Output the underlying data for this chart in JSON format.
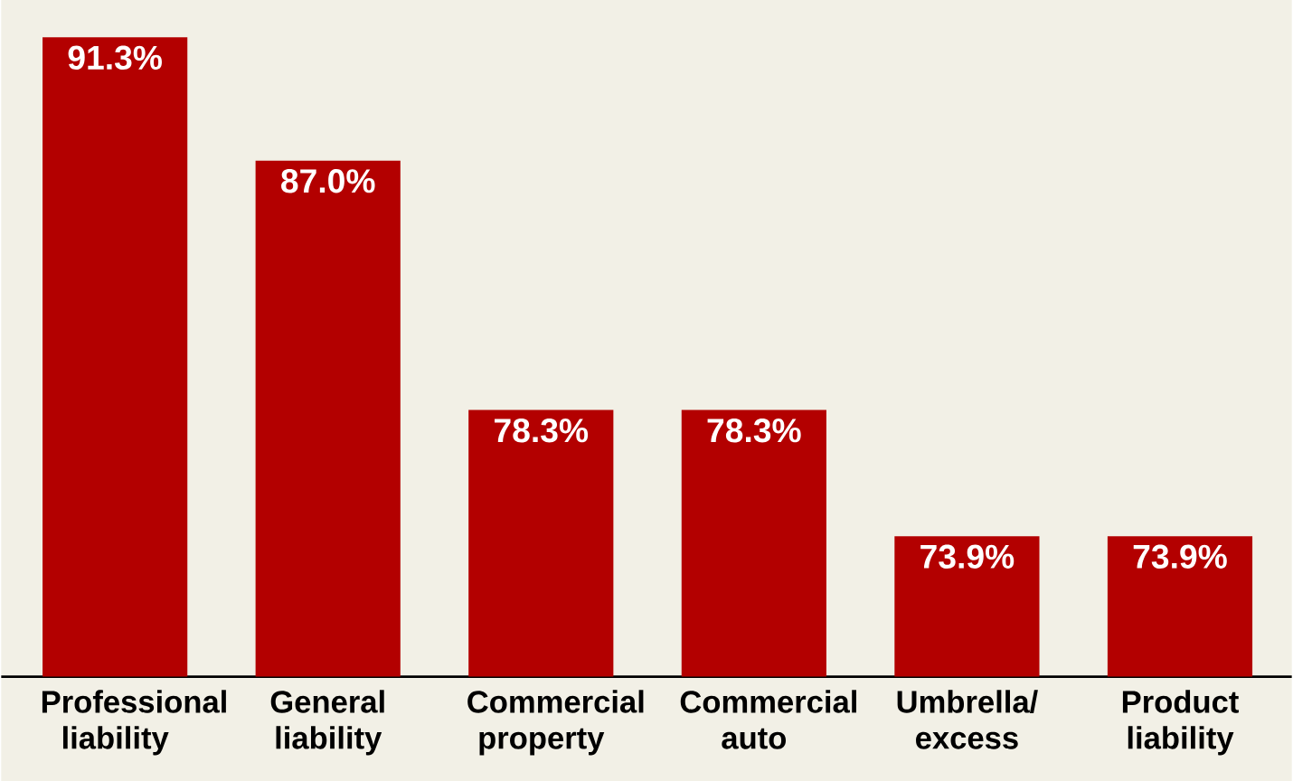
{
  "chart_data": {
    "type": "bar",
    "categories": [
      "Professional liability",
      "General liability",
      "Commercial property",
      "Commercial auto",
      "Umbrella/ excess",
      "Product liability"
    ],
    "values": [
      91.3,
      87.0,
      78.3,
      78.3,
      73.9,
      73.9
    ],
    "value_labels": [
      "91.3%",
      "87.0%",
      "78.3%",
      "78.3%",
      "73.9%",
      "73.9%"
    ],
    "color": "#b30000",
    "ylim": [
      69,
      92.6
    ],
    "tick_labels": "x"
  }
}
